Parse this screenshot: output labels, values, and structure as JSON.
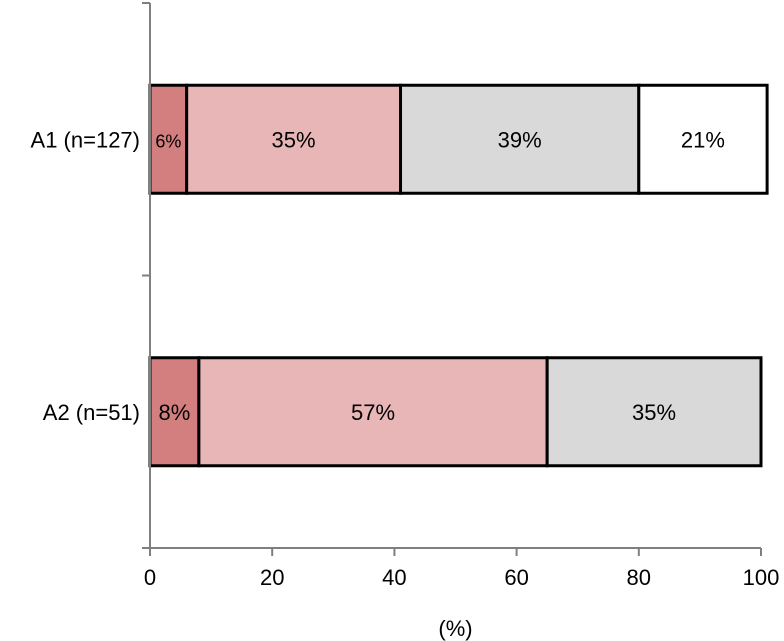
{
  "chart_data": {
    "type": "bar",
    "orientation": "horizontal",
    "stacked": true,
    "title": "",
    "xlabel": "(%)",
    "ylabel": "",
    "xlim": [
      0,
      100
    ],
    "x_ticks": [
      "0",
      "20",
      "40",
      "60",
      "80",
      "100"
    ],
    "grid": false,
    "legend": "none",
    "categories": [
      "A1 (n=127)",
      "A2 (n=51)"
    ],
    "series": [
      {
        "color": "#d47f7f",
        "values": [
          6,
          8
        ],
        "labels": [
          "6%",
          "8%"
        ]
      },
      {
        "color": "#e8b6b6",
        "values": [
          35,
          57
        ],
        "labels": [
          "35%",
          "57%"
        ]
      },
      {
        "color": "#d9d9d9",
        "values": [
          39,
          35
        ],
        "labels": [
          "39%",
          "35%"
        ]
      },
      {
        "color": "#ffffff",
        "values": [
          21,
          0
        ],
        "labels": [
          "21%",
          ""
        ]
      }
    ]
  }
}
